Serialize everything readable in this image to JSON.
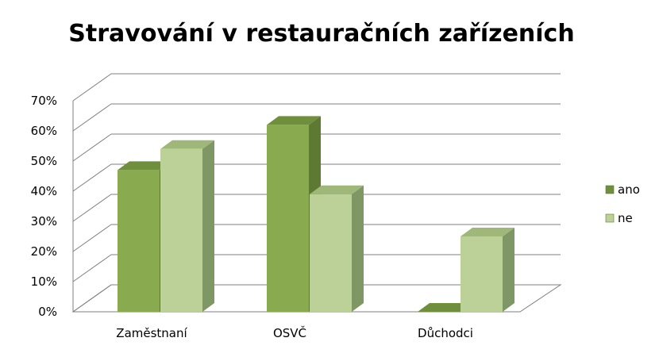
{
  "chart_data": {
    "type": "bar",
    "title": "Stravování v restauračních zařízeních",
    "categories": [
      "Zaměstnaní",
      "OSVČ",
      "Důchodci"
    ],
    "series": [
      {
        "name": "ano",
        "values": [
          47,
          62,
          0
        ]
      },
      {
        "name": "ne",
        "values": [
          54,
          39,
          25
        ]
      }
    ],
    "ylim": [
      0,
      70
    ],
    "yticks": [
      "0%",
      "10%",
      "20%",
      "30%",
      "40%",
      "50%",
      "60%",
      "70%"
    ],
    "grid": true,
    "legend_position": "right",
    "colors": {
      "ano_front": "#8aaa4f",
      "ano_side": "#5e7a32",
      "ano_top": "#6f8f3d",
      "ne_front": "#bcd197",
      "ne_side": "#7f9665",
      "ne_top": "#9fb87a",
      "ano_legend": "#6f8f3d",
      "ne_legend": "#bcd197"
    }
  }
}
